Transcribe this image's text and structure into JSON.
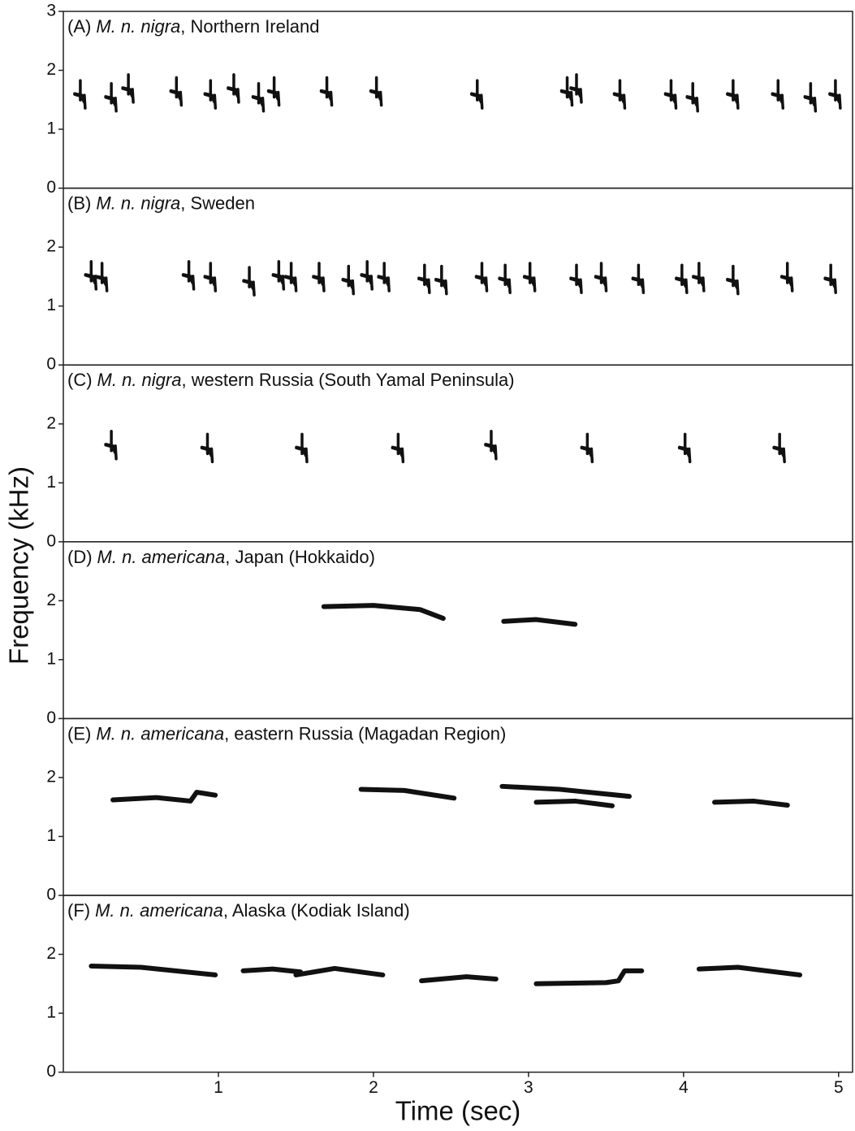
{
  "chart_data": {
    "type": "spectrogram",
    "xlabel": "Time (sec)",
    "ylabel": "Frequency (kHz)",
    "xlim": [
      0,
      5.09
    ],
    "xticks": [
      1,
      2,
      3,
      4,
      5
    ],
    "color": "#111111",
    "panels": [
      {
        "type": "notes",
        "label": "(A)",
        "taxon": "M. n. nigra",
        "place": ", Northern Ireland",
        "ylim": [
          0,
          3
        ],
        "yticks": [
          0,
          1,
          2,
          3
        ],
        "x": [
          0.12,
          0.32,
          0.43,
          0.74,
          0.96,
          1.11,
          1.27,
          1.37,
          1.71,
          2.03,
          2.68,
          3.26,
          3.32,
          3.6,
          3.93,
          4.07,
          4.33,
          4.62,
          4.83,
          4.99
        ],
        "values": [
          1.55,
          1.5,
          1.65,
          1.6,
          1.55,
          1.65,
          1.5,
          1.6,
          1.6,
          1.6,
          1.55,
          1.6,
          1.65,
          1.55,
          1.55,
          1.5,
          1.55,
          1.55,
          1.5,
          1.55
        ]
      },
      {
        "type": "notes",
        "label": "(B)",
        "taxon": "M. n. nigra",
        "place": ", Sweden",
        "ylim": [
          0,
          3
        ],
        "yticks": [
          0,
          1,
          2
        ],
        "x": [
          0.19,
          0.26,
          0.82,
          0.96,
          1.21,
          1.4,
          1.48,
          1.66,
          1.85,
          1.97,
          2.08,
          2.34,
          2.45,
          2.71,
          2.86,
          3.02,
          3.32,
          3.48,
          3.72,
          4.0,
          4.11,
          4.33,
          4.68,
          4.96
        ],
        "values": [
          1.48,
          1.45,
          1.48,
          1.45,
          1.38,
          1.48,
          1.45,
          1.45,
          1.4,
          1.48,
          1.45,
          1.42,
          1.4,
          1.45,
          1.42,
          1.45,
          1.42,
          1.45,
          1.42,
          1.42,
          1.45,
          1.4,
          1.45,
          1.42
        ]
      },
      {
        "type": "notes",
        "label": "(C)",
        "taxon": "M. n. nigra",
        "place": ", western Russia (South Yamal Peninsula)",
        "ylim": [
          0,
          3
        ],
        "yticks": [
          0,
          1,
          2
        ],
        "x": [
          0.32,
          0.94,
          1.55,
          2.17,
          2.77,
          3.39,
          4.02,
          4.63
        ],
        "values": [
          1.6,
          1.55,
          1.55,
          1.55,
          1.6,
          1.55,
          1.55,
          1.55
        ]
      },
      {
        "type": "calls",
        "label": "(D)",
        "taxon": "M. n. americana",
        "place": ", Japan (Hokkaido)",
        "ylim": [
          0,
          3
        ],
        "yticks": [
          0,
          1,
          2
        ],
        "x": [
          1.68,
          2.0,
          2.3,
          2.45,
          null,
          2.84,
          3.05,
          3.3
        ],
        "values": [
          1.9,
          1.92,
          1.85,
          1.7,
          null,
          1.65,
          1.68,
          1.6
        ]
      },
      {
        "type": "calls",
        "label": "(E)",
        "taxon": "M. n. americana",
        "place": ", eastern Russia (Magadan Region)",
        "ylim": [
          0,
          3
        ],
        "yticks": [
          0,
          1,
          2
        ],
        "x": [
          0.32,
          0.6,
          0.82,
          0.86,
          0.98,
          null,
          1.92,
          2.2,
          2.52,
          null,
          2.83,
          3.2,
          3.65,
          null,
          3.05,
          3.3,
          3.54,
          null,
          4.2,
          4.45,
          4.67
        ],
        "values": [
          1.62,
          1.66,
          1.6,
          1.75,
          1.7,
          null,
          1.8,
          1.78,
          1.65,
          null,
          1.85,
          1.8,
          1.68,
          null,
          1.58,
          1.6,
          1.52,
          null,
          1.58,
          1.6,
          1.53
        ]
      },
      {
        "type": "calls",
        "label": "(F)",
        "taxon": "M. n. americana",
        "place": ", Alaska (Kodiak Island)",
        "ylim": [
          0,
          3
        ],
        "yticks": [
          0,
          1,
          2
        ],
        "x": [
          0.18,
          0.5,
          0.98,
          null,
          1.16,
          1.35,
          1.53,
          null,
          1.5,
          1.75,
          2.06,
          null,
          2.31,
          2.6,
          2.79,
          null,
          3.05,
          3.5,
          3.58,
          3.62,
          3.73,
          null,
          4.1,
          4.35,
          4.75
        ],
        "values": [
          1.8,
          1.78,
          1.65,
          null,
          1.72,
          1.75,
          1.7,
          null,
          1.65,
          1.76,
          1.65,
          null,
          1.55,
          1.62,
          1.58,
          null,
          1.5,
          1.52,
          1.55,
          1.72,
          1.72,
          null,
          1.75,
          1.78,
          1.65
        ]
      }
    ]
  }
}
